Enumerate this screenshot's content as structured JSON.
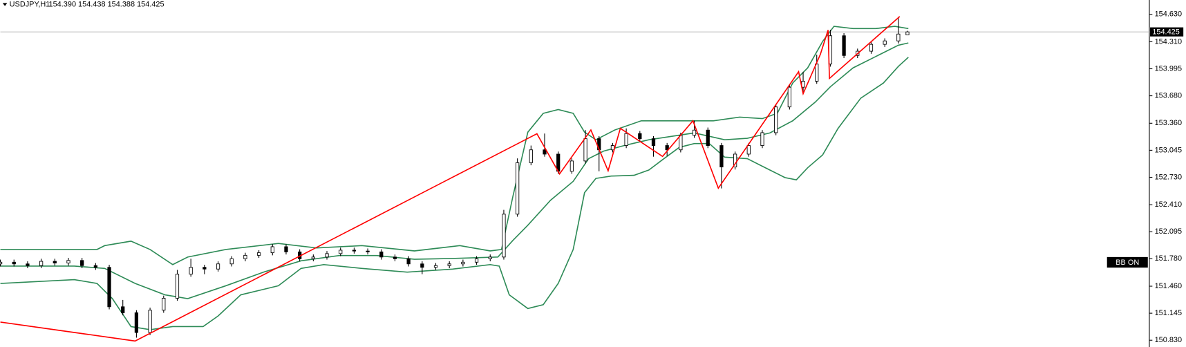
{
  "chart_data": {
    "type": "candlestick",
    "title": "USDJPY,H1",
    "subtitle": "154.390 154.438 154.388 154.425",
    "annotation": "BB ON",
    "up_color": "#ffffff",
    "down_color": "#000000",
    "wick_color": "#000000",
    "xlim": [
      0,
      253
    ],
    "ylim": [
      150.751,
      154.797
    ],
    "yticks": [
      {
        "value": 154.63,
        "label": "154.630"
      },
      {
        "value": 154.31,
        "label": "154.310"
      },
      153.995,
      {
        "value": 153.68,
        "label": "153.680"
      },
      {
        "value": 153.36,
        "label": "153.360"
      },
      153.045,
      {
        "value": 152.73,
        "label": "152.730"
      },
      {
        "value": 152.41,
        "label": "152.410"
      },
      152.095,
      {
        "value": 151.78,
        "label": "151.780"
      },
      {
        "value": 151.46,
        "label": "151.460"
      },
      151.145,
      {
        "value": 150.83,
        "label": "150.830"
      }
    ],
    "current_price": {
      "value": 154.425,
      "label": "154.425"
    },
    "x": [
      0,
      3,
      6,
      9,
      12,
      15,
      18,
      21,
      24,
      27,
      30,
      33,
      36,
      39,
      42,
      45,
      48,
      51,
      54,
      57,
      60,
      63,
      66,
      69,
      72,
      75,
      78,
      81,
      84,
      87,
      90,
      93,
      96,
      99,
      102,
      105,
      108,
      111,
      114,
      117,
      120,
      123,
      126,
      129,
      132,
      135,
      138,
      141,
      144,
      147,
      150,
      153,
      156,
      159,
      162,
      165,
      168,
      171,
      174,
      177,
      180,
      183,
      186,
      189,
      192,
      195,
      198,
      200
    ],
    "open": [
      151.72,
      151.74,
      151.72,
      151.7,
      151.75,
      151.73,
      151.76,
      151.7,
      151.68,
      151.22,
      151.15,
      150.92,
      151.18,
      151.32,
      151.6,
      151.68,
      151.66,
      151.72,
      151.78,
      151.82,
      151.85,
      151.92,
      151.86,
      151.78,
      151.8,
      151.84,
      151.88,
      151.87,
      151.86,
      151.8,
      151.78,
      151.72,
      151.68,
      151.7,
      151.72,
      151.74,
      151.78,
      151.8,
      152.3,
      152.9,
      153.05,
      153.0,
      152.8,
      152.92,
      153.18,
      153.05,
      153.1,
      153.24,
      153.18,
      153.1,
      153.05,
      153.22,
      153.28,
      153.1,
      152.85,
      153.0,
      153.1,
      153.25,
      153.55,
      153.78,
      153.85,
      154.05,
      154.38,
      154.15,
      154.2,
      154.28,
      154.32,
      154.39
    ],
    "high": [
      151.77,
      151.77,
      151.75,
      151.78,
      151.78,
      151.79,
      151.79,
      151.73,
      151.71,
      151.3,
      151.18,
      151.21,
      151.35,
      151.65,
      151.78,
      151.71,
      151.75,
      151.81,
      151.85,
      151.88,
      151.95,
      151.95,
      151.89,
      151.83,
      151.87,
      151.91,
      151.91,
      151.9,
      151.89,
      151.83,
      151.81,
      151.75,
      151.73,
      151.75,
      151.77,
      151.81,
      151.83,
      152.35,
      152.95,
      153.1,
      153.24,
      153.03,
      152.95,
      153.28,
      153.21,
      153.13,
      153.3,
      153.27,
      153.21,
      153.13,
      153.25,
      153.39,
      153.31,
      153.13,
      153.03,
      153.13,
      153.28,
      153.58,
      153.81,
      153.96,
      154.16,
      154.45,
      154.41,
      154.23,
      154.31,
      154.35,
      154.6,
      154.438
    ],
    "low": [
      151.69,
      151.69,
      151.67,
      151.67,
      151.7,
      151.7,
      151.67,
      151.65,
      151.19,
      151.12,
      150.86,
      150.89,
      151.15,
      151.29,
      151.57,
      151.6,
      151.63,
      151.69,
      151.75,
      151.79,
      151.82,
      151.83,
      151.75,
      151.75,
      151.77,
      151.81,
      151.84,
      151.83,
      151.77,
      151.75,
      151.69,
      151.6,
      151.65,
      151.67,
      151.69,
      151.71,
      151.75,
      151.77,
      152.27,
      152.87,
      152.97,
      152.77,
      152.77,
      152.89,
      152.8,
      153.02,
      153.07,
      153.15,
      152.97,
      152.98,
      153.02,
      153.19,
      153.07,
      152.6,
      152.82,
      152.97,
      153.07,
      153.22,
      153.52,
      153.7,
      153.82,
      154.02,
      154.12,
      154.12,
      154.17,
      154.25,
      154.29,
      154.388
    ],
    "close": [
      151.74,
      151.72,
      151.7,
      151.75,
      151.73,
      151.76,
      151.7,
      151.68,
      151.22,
      151.15,
      150.92,
      151.18,
      151.32,
      151.6,
      151.68,
      151.66,
      151.72,
      151.78,
      151.82,
      151.85,
      151.92,
      151.86,
      151.78,
      151.8,
      151.84,
      151.88,
      151.87,
      151.86,
      151.8,
      151.78,
      151.72,
      151.68,
      151.7,
      151.72,
      151.74,
      151.78,
      151.8,
      152.3,
      152.9,
      153.05,
      153.0,
      152.8,
      152.92,
      153.18,
      153.05,
      153.1,
      153.24,
      153.18,
      153.1,
      153.05,
      153.22,
      153.28,
      153.1,
      152.85,
      153.0,
      153.1,
      153.25,
      153.55,
      153.78,
      153.85,
      154.05,
      154.38,
      154.15,
      154.2,
      154.28,
      154.32,
      154.4,
      154.425
    ],
    "overlays": [
      {
        "color": "#2e8b57",
        "x": [
          0,
          21.3,
          23,
          28.8,
          33,
          38,
          41.3,
          49.7,
          61.3,
          69.7,
          79.7,
          91.3,
          101.3,
          108,
          110.5,
          113,
          116.3,
          119.7,
          123,
          126.3,
          128.8,
          131.3,
          135.5,
          141.3,
          153,
          157.2,
          163,
          168,
          171.3,
          174.7,
          178,
          181.3,
          183.8,
          188,
          193,
          197.2,
          200.2
        ],
        "values": [
          151.888,
          151.888,
          151.933,
          151.985,
          151.888,
          151.712,
          151.8,
          151.888,
          151.959,
          151.906,
          151.933,
          151.871,
          151.933,
          151.871,
          151.888,
          152.506,
          153.256,
          153.476,
          153.52,
          153.476,
          153.256,
          153.167,
          153.282,
          153.388,
          153.388,
          153.388,
          153.432,
          153.414,
          153.476,
          153.829,
          154.005,
          154.314,
          154.49,
          154.464,
          154.464,
          154.49,
          154.464
        ]
      },
      {
        "color": "#2e8b57",
        "x": [
          0,
          16.3,
          23,
          29.7,
          36.3,
          41.3,
          49.7,
          58,
          66.3,
          74.7,
          83,
          91.3,
          99.7,
          109.7,
          113,
          116.3,
          121.3,
          126.3,
          129.7,
          133,
          138,
          143,
          146.3,
          153,
          159.7,
          164.7,
          169.7,
          174.7,
          179.7,
          183,
          188,
          193,
          198,
          200.2
        ],
        "values": [
          151.694,
          151.694,
          151.668,
          151.492,
          151.359,
          151.315,
          151.465,
          151.624,
          151.756,
          151.818,
          151.818,
          151.774,
          151.783,
          151.8,
          151.994,
          152.171,
          152.462,
          152.682,
          152.947,
          153.035,
          153.106,
          153.167,
          153.194,
          153.247,
          153.167,
          153.185,
          153.247,
          153.388,
          153.608,
          153.785,
          154.005,
          154.138,
          154.27,
          154.296
        ]
      },
      {
        "color": "#2e8b57",
        "x": [
          0,
          16.3,
          21.3,
          24.7,
          28.8,
          33,
          38,
          44.7,
          48,
          53,
          61.3,
          66.3,
          71.3,
          79.7,
          89.7,
          99.7,
          108,
          110,
          112.2,
          116.3,
          119.7,
          123,
          126.3,
          128.8,
          131.3,
          134.7,
          139.7,
          143,
          146.3,
          149.7,
          153,
          156.3,
          159.7,
          164.7,
          168,
          173,
          175.5,
          178,
          181.3,
          184.7,
          189.7,
          194.7,
          198,
          200.2
        ],
        "values": [
          151.492,
          151.536,
          151.492,
          151.315,
          150.989,
          150.953,
          150.989,
          150.989,
          151.112,
          151.359,
          151.465,
          151.668,
          151.712,
          151.668,
          151.624,
          151.659,
          151.712,
          151.694,
          151.359,
          151.2,
          151.245,
          151.492,
          151.888,
          152.55,
          152.717,
          152.744,
          152.753,
          152.815,
          152.947,
          153.079,
          153.123,
          153.123,
          152.964,
          152.947,
          152.859,
          152.726,
          152.7,
          152.841,
          152.991,
          153.3,
          153.652,
          153.829,
          154.023,
          154.129
        ]
      },
      {
        "color": "#ff0000",
        "x": [
          0,
          29.7,
          118.3,
          123.3,
          130.2,
          134,
          136.7,
          146,
          152.7,
          158.3,
          176,
          177,
          180.8,
          182.5,
          182.8,
          198.3
        ],
        "values": [
          151.042,
          150.821,
          153.238,
          152.77,
          153.282,
          152.806,
          153.3,
          152.973,
          153.388,
          152.603,
          153.961,
          153.705,
          154.164,
          154.446,
          153.882,
          154.605
        ]
      }
    ]
  }
}
